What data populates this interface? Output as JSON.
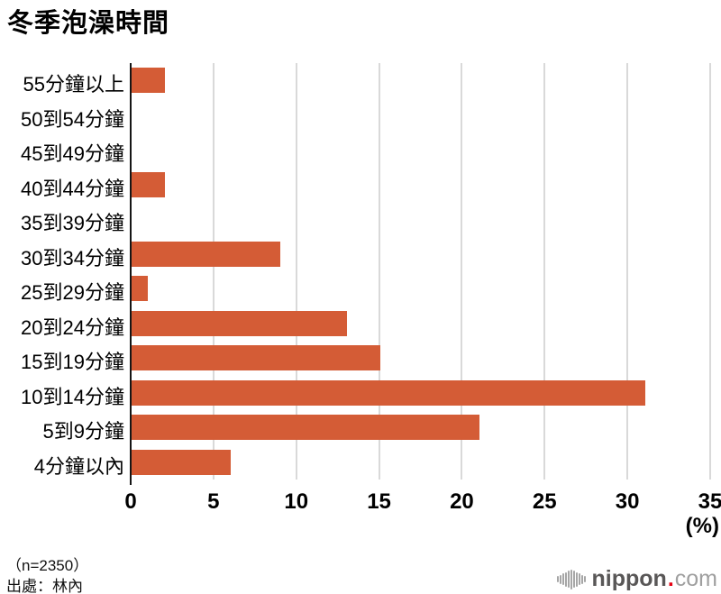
{
  "title": "冬季泡澡時間",
  "chart_data": {
    "type": "bar",
    "orientation": "horizontal",
    "title": "冬季泡澡時間",
    "categories": [
      "55分鐘以上",
      "50到54分鐘",
      "45到49分鐘",
      "40到44分鐘",
      "35到39分鐘",
      "30到34分鐘",
      "25到29分鐘",
      "20到24分鐘",
      "15到19分鐘",
      "10到14分鐘",
      "5到9分鐘",
      "4分鐘以內"
    ],
    "values": [
      2,
      0,
      0,
      2,
      0,
      9,
      1,
      13,
      15,
      31,
      21,
      6
    ],
    "xlabel": "(%)",
    "xticks": [
      0,
      5,
      10,
      15,
      20,
      25,
      30,
      35
    ],
    "xlim": [
      0,
      35
    ],
    "grid": true,
    "legend": "none",
    "bar_color": "#d45c36",
    "gridline_color": "#d9d9d9",
    "axis_color": "#151515"
  },
  "footer": {
    "sample": "（n=2350）",
    "source": "出處：林內"
  },
  "logo": {
    "brand": "nippon",
    "dot": ".",
    "tld": "com",
    "icon": "soundwave-icon",
    "brand_color": "#595757",
    "dot_color": "#e60012",
    "tld_color": "#9f9f9f"
  }
}
